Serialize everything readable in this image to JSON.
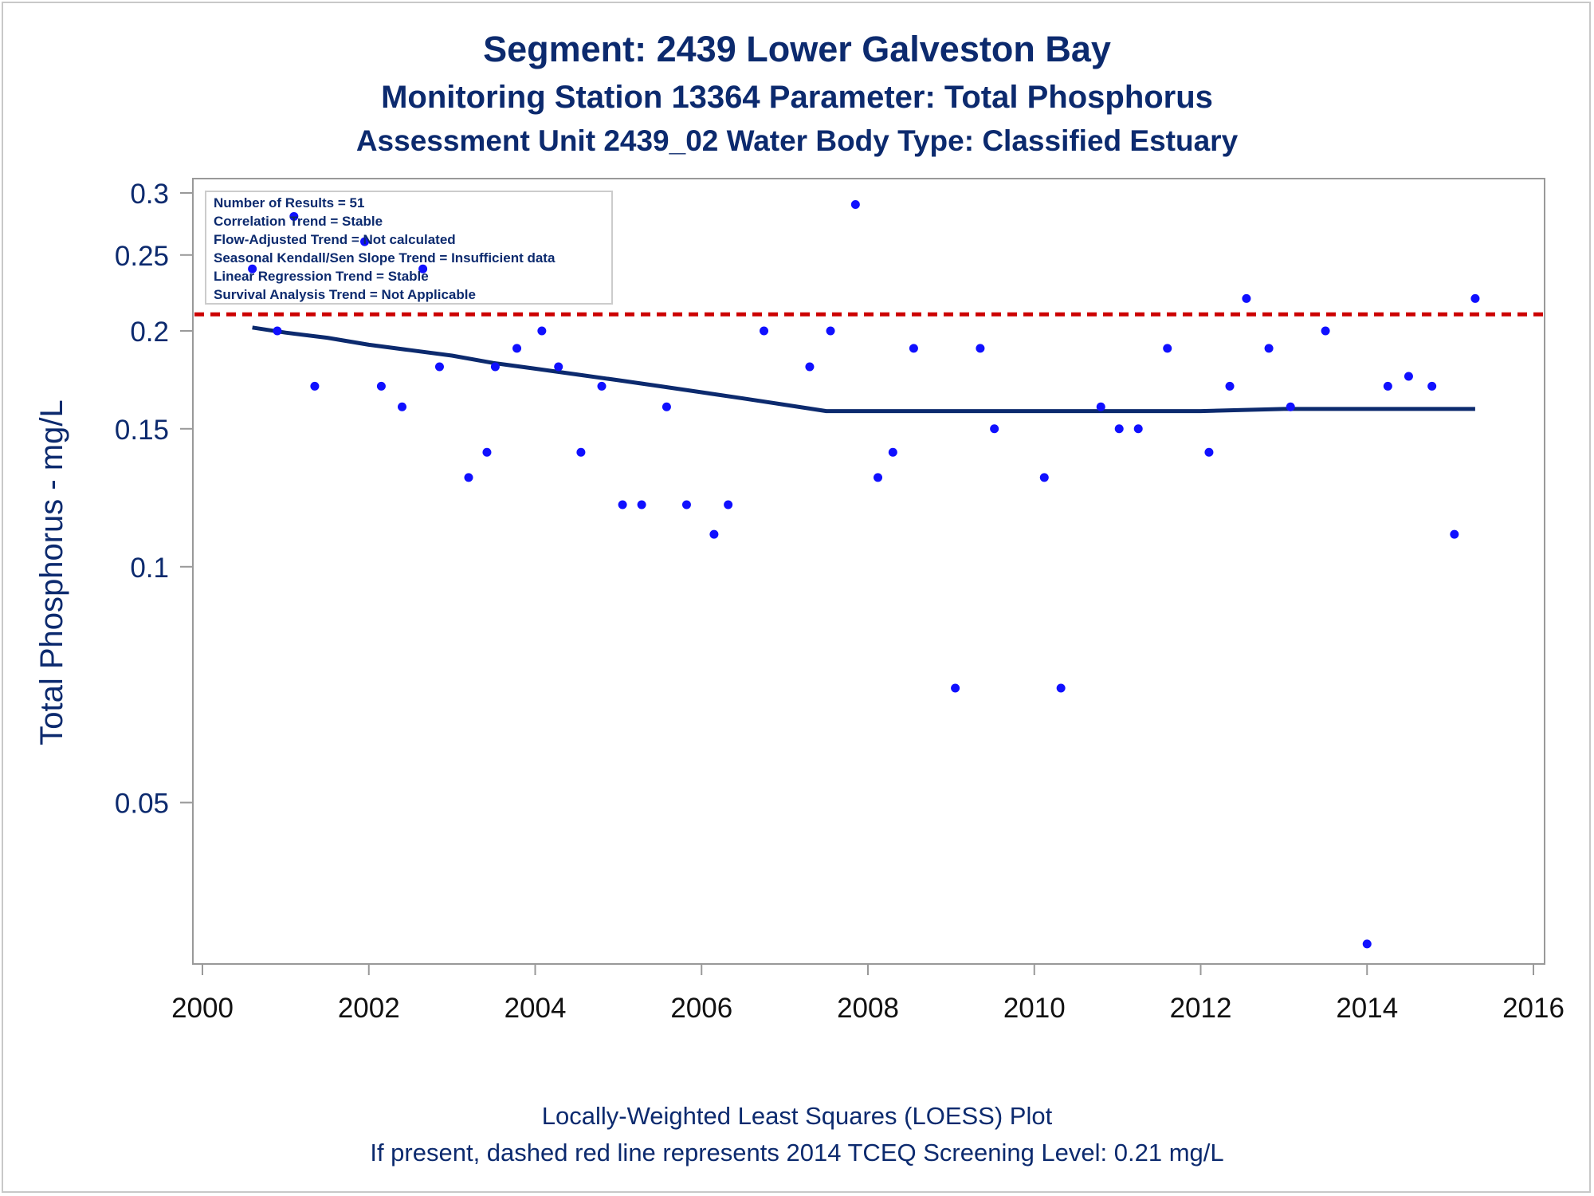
{
  "titles": {
    "line1": "Segment: 2439  Lower Galveston Bay",
    "line2": "Monitoring Station 13364 Parameter: Total Phosphorus",
    "line3": "Assessment Unit 2439_02   Water Body Type: Classified Estuary"
  },
  "footnotes": {
    "line1": "Locally-Weighted Least Squares (LOESS) Plot",
    "line2": "If present, dashed red line represents 2014 TCEQ Screening Level: 0.21 mg/L"
  },
  "stats_box": [
    "Number of Results = 51",
    "Correlation Trend = Stable",
    "Flow-Adjusted Trend = Not calculated",
    "Seasonal Kendall/Sen Slope Trend = Insufficient data",
    "Linear Regression Trend = Stable",
    "Survival Analysis Trend = Not Applicable"
  ],
  "colors": {
    "text": "#0c2a6e",
    "points": "#1010ff",
    "loess": "#0c2a6e",
    "screening": "#cc0000",
    "axis": "#999999"
  },
  "chart_data": {
    "type": "scatter",
    "xlabel": "",
    "ylabel": "Total Phosphorus - mg/L",
    "xlim": [
      2000,
      2016
    ],
    "ylim": [
      0.032,
      0.3
    ],
    "y_scale": "log",
    "x_ticks": [
      "2000",
      "2002",
      "2004",
      "2006",
      "2008",
      "2010",
      "2012",
      "2014",
      "2016"
    ],
    "y_ticks": [
      "0.05",
      "0.1",
      "0.15",
      "0.2",
      "0.25",
      "0.3"
    ],
    "screening_level": 0.21,
    "points": [
      {
        "x": 2000.6,
        "y": 0.24
      },
      {
        "x": 2000.9,
        "y": 0.2
      },
      {
        "x": 2001.1,
        "y": 0.28
      },
      {
        "x": 2001.35,
        "y": 0.17
      },
      {
        "x": 2001.95,
        "y": 0.26
      },
      {
        "x": 2002.15,
        "y": 0.17
      },
      {
        "x": 2002.4,
        "y": 0.16
      },
      {
        "x": 2002.65,
        "y": 0.24
      },
      {
        "x": 2002.85,
        "y": 0.18
      },
      {
        "x": 2003.2,
        "y": 0.13
      },
      {
        "x": 2003.42,
        "y": 0.14
      },
      {
        "x": 2003.52,
        "y": 0.18
      },
      {
        "x": 2003.78,
        "y": 0.19
      },
      {
        "x": 2004.08,
        "y": 0.2
      },
      {
        "x": 2004.28,
        "y": 0.18
      },
      {
        "x": 2004.55,
        "y": 0.14
      },
      {
        "x": 2004.8,
        "y": 0.17
      },
      {
        "x": 2005.05,
        "y": 0.12
      },
      {
        "x": 2005.28,
        "y": 0.12
      },
      {
        "x": 2005.58,
        "y": 0.16
      },
      {
        "x": 2005.82,
        "y": 0.12
      },
      {
        "x": 2006.15,
        "y": 0.11
      },
      {
        "x": 2006.32,
        "y": 0.12
      },
      {
        "x": 2006.75,
        "y": 0.2
      },
      {
        "x": 2007.3,
        "y": 0.18
      },
      {
        "x": 2007.55,
        "y": 0.2
      },
      {
        "x": 2007.85,
        "y": 0.29
      },
      {
        "x": 2008.12,
        "y": 0.13
      },
      {
        "x": 2008.3,
        "y": 0.14
      },
      {
        "x": 2008.55,
        "y": 0.19
      },
      {
        "x": 2009.05,
        "y": 0.07
      },
      {
        "x": 2009.35,
        "y": 0.19
      },
      {
        "x": 2009.52,
        "y": 0.15
      },
      {
        "x": 2010.12,
        "y": 0.13
      },
      {
        "x": 2010.32,
        "y": 0.07
      },
      {
        "x": 2010.8,
        "y": 0.16
      },
      {
        "x": 2011.02,
        "y": 0.15
      },
      {
        "x": 2011.25,
        "y": 0.15
      },
      {
        "x": 2011.6,
        "y": 0.19
      },
      {
        "x": 2012.1,
        "y": 0.14
      },
      {
        "x": 2012.35,
        "y": 0.17
      },
      {
        "x": 2012.55,
        "y": 0.22
      },
      {
        "x": 2012.82,
        "y": 0.19
      },
      {
        "x": 2013.08,
        "y": 0.16
      },
      {
        "x": 2013.5,
        "y": 0.2
      },
      {
        "x": 2014.0,
        "y": 0.033
      },
      {
        "x": 2014.25,
        "y": 0.17
      },
      {
        "x": 2014.5,
        "y": 0.175
      },
      {
        "x": 2014.78,
        "y": 0.17
      },
      {
        "x": 2015.05,
        "y": 0.11
      },
      {
        "x": 2015.3,
        "y": 0.22
      }
    ],
    "loess": [
      {
        "x": 2000.6,
        "y": 0.202
      },
      {
        "x": 2001.0,
        "y": 0.199
      },
      {
        "x": 2001.5,
        "y": 0.196
      },
      {
        "x": 2002.0,
        "y": 0.192
      },
      {
        "x": 2002.5,
        "y": 0.189
      },
      {
        "x": 2003.0,
        "y": 0.186
      },
      {
        "x": 2003.5,
        "y": 0.182
      },
      {
        "x": 2004.0,
        "y": 0.179
      },
      {
        "x": 2004.5,
        "y": 0.176
      },
      {
        "x": 2005.0,
        "y": 0.173
      },
      {
        "x": 2005.5,
        "y": 0.17
      },
      {
        "x": 2006.0,
        "y": 0.167
      },
      {
        "x": 2006.5,
        "y": 0.164
      },
      {
        "x": 2007.0,
        "y": 0.161
      },
      {
        "x": 2007.5,
        "y": 0.158
      },
      {
        "x": 2008.0,
        "y": 0.158
      },
      {
        "x": 2009.0,
        "y": 0.158
      },
      {
        "x": 2010.0,
        "y": 0.158
      },
      {
        "x": 2011.0,
        "y": 0.158
      },
      {
        "x": 2012.0,
        "y": 0.158
      },
      {
        "x": 2013.0,
        "y": 0.159
      },
      {
        "x": 2014.0,
        "y": 0.159
      },
      {
        "x": 2015.3,
        "y": 0.159
      }
    ]
  }
}
